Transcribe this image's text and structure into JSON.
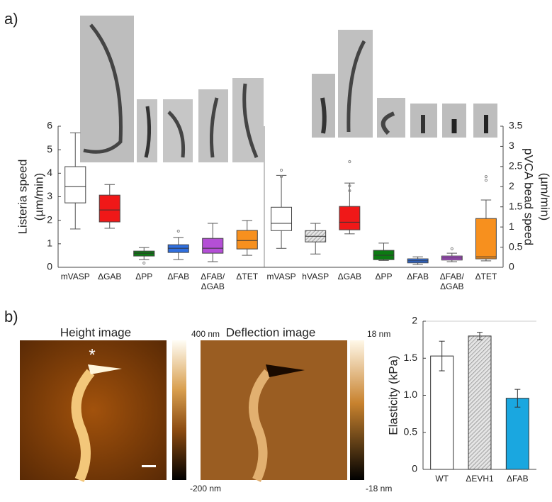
{
  "panels": {
    "a": "a)",
    "b": "b)"
  },
  "afm": {
    "height_title": "Height image",
    "deflection_title": "Deflection image",
    "marker": "*",
    "height_max": "400 nm",
    "height_min": "-200 nm",
    "deflection_max": "18 nm",
    "deflection_min": "-18 nm"
  },
  "chart_data": [
    {
      "type": "box",
      "ylabel": [
        "Listeria speed",
        "(µm/min)"
      ],
      "categories": [
        "mVASP",
        "ΔGAB",
        "ΔPP",
        "ΔFAB",
        "ΔFAB/ΔGAB",
        "ΔTET"
      ],
      "colors": [
        "#ffffff",
        "#f01818",
        "#0c7a12",
        "#2f6fe0",
        "#b44fd6",
        "#f7901e"
      ],
      "hatch": [
        false,
        false,
        false,
        false,
        false,
        false
      ],
      "boxes": [
        {
          "whislo": 1.63,
          "q1": 2.74,
          "med": 3.43,
          "q3": 4.28,
          "whishi": 5.72,
          "fliers": []
        },
        {
          "whislo": 1.66,
          "q1": 1.93,
          "med": 2.44,
          "q3": 3.07,
          "whishi": 3.52,
          "fliers": []
        },
        {
          "whislo": 0.33,
          "q1": 0.48,
          "med": 0.6,
          "q3": 0.69,
          "whishi": 0.84,
          "fliers": [
            0.18
          ]
        },
        {
          "whislo": 0.33,
          "q1": 0.63,
          "med": 0.81,
          "q3": 0.96,
          "whishi": 1.27,
          "fliers": [
            1.54
          ]
        },
        {
          "whislo": 0.24,
          "q1": 0.6,
          "med": 0.81,
          "q3": 1.23,
          "whishi": 1.87,
          "fliers": []
        },
        {
          "whislo": 0.51,
          "q1": 0.78,
          "med": 1.14,
          "q3": 1.57,
          "whishi": 1.99,
          "fliers": []
        }
      ],
      "ylim": [
        0,
        6
      ],
      "yticks": [
        0,
        1,
        2,
        3,
        4,
        5,
        6
      ]
    },
    {
      "type": "box",
      "ylabel": [
        "pVCA bead speed",
        "(µm/min)"
      ],
      "categories": [
        "mVASP",
        "hVASP",
        "ΔGAB",
        "ΔPP",
        "ΔFAB",
        "ΔFAB/ΔGAB",
        "ΔTET"
      ],
      "colors": [
        "#ffffff",
        "#dcdcdc",
        "#f01818",
        "#0c7a12",
        "#2f6fe0",
        "#b44fd6",
        "#f7901e"
      ],
      "hatch": [
        false,
        true,
        false,
        false,
        false,
        false,
        false
      ],
      "boxes": [
        {
          "whislo": 0.47,
          "q1": 0.91,
          "med": 1.09,
          "q3": 1.49,
          "whishi": 2.28,
          "fliers": [
            2.41,
            2.25
          ]
        },
        {
          "whislo": 0.33,
          "q1": 0.63,
          "med": 0.77,
          "q3": 0.91,
          "whishi": 1.09,
          "fliers": []
        },
        {
          "whislo": 0.83,
          "q1": 0.93,
          "med": 1.12,
          "q3": 1.51,
          "whishi": 2.09,
          "fliers": [
            2.62,
            2.02,
            1.9
          ]
        },
        {
          "whislo": 0.17,
          "q1": 0.19,
          "med": 0.3,
          "q3": 0.42,
          "whishi": 0.6,
          "fliers": []
        },
        {
          "whislo": 0.07,
          "q1": 0.11,
          "med": 0.16,
          "q3": 0.21,
          "whishi": 0.26,
          "fliers": []
        },
        {
          "whislo": 0.14,
          "q1": 0.18,
          "med": 0.23,
          "q3": 0.28,
          "whishi": 0.35,
          "fliers": [
            0.46
          ]
        },
        {
          "whislo": 0.16,
          "q1": 0.21,
          "med": 0.26,
          "q3": 1.21,
          "whishi": 1.67,
          "fliers": [
            2.25,
            2.16
          ]
        }
      ],
      "ylim": [
        0,
        3.5
      ],
      "yticks": [
        0,
        0.5,
        1,
        1.5,
        2,
        2.5,
        3,
        3.5
      ]
    },
    {
      "type": "bar",
      "ylabel": [
        "Elasticity (kPa)"
      ],
      "categories": [
        "WT",
        "ΔEVH1",
        "ΔFAB"
      ],
      "values": [
        1.53,
        1.8,
        0.96
      ],
      "errors": [
        0.2,
        0.05,
        0.12
      ],
      "colors": [
        "#ffffff",
        "#d0d0d0",
        "#1aa7e0"
      ],
      "hatch": [
        false,
        true,
        false
      ],
      "ylim": [
        0,
        2
      ],
      "yticks": [
        0,
        0.5,
        {
          "value": 1,
          "label": "1.0"
        },
        1.5,
        2
      ]
    }
  ]
}
